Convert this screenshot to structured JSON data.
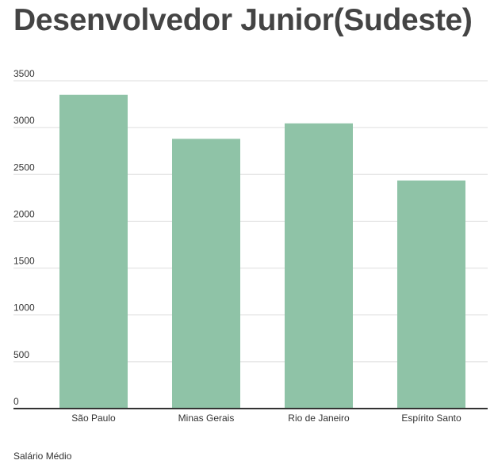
{
  "chart_data": {
    "type": "bar",
    "title": "Desenvolvedor Junior(Sudeste)",
    "categories": [
      "São Paulo",
      "Minas Gerais",
      "Rio de Janeiro",
      "Espírito Santo"
    ],
    "values": [
      3350,
      2880,
      3045,
      2435
    ],
    "ylim": [
      0,
      3500
    ],
    "yticks": [
      "0",
      "500",
      "1000",
      "1500",
      "2000",
      "2500",
      "3000",
      "3500"
    ],
    "legend_label": "Salário Médio",
    "grid": true,
    "bar_color": "#8fc3a7",
    "grid_color": "#dddddd",
    "axis_color": "#333333"
  }
}
